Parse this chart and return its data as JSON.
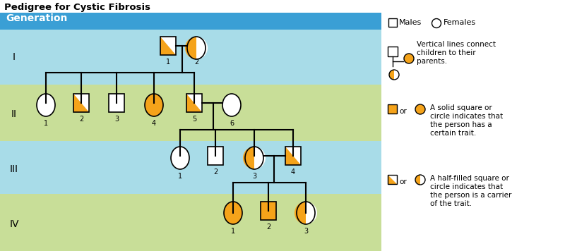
{
  "title": "Pedigree for Cystic Fibrosis",
  "generation_label": "Generation",
  "orange": "#F5A31A",
  "white": "#FFFFFF",
  "black": "#000000",
  "header_blue": "#3A9FD5",
  "cyan_band": "#A8D8E8",
  "green_band": "#C8DE98",
  "gen_labels": [
    "I",
    "II",
    "III",
    "IV"
  ],
  "lw": 1.5,
  "sym_lw": 1.2
}
